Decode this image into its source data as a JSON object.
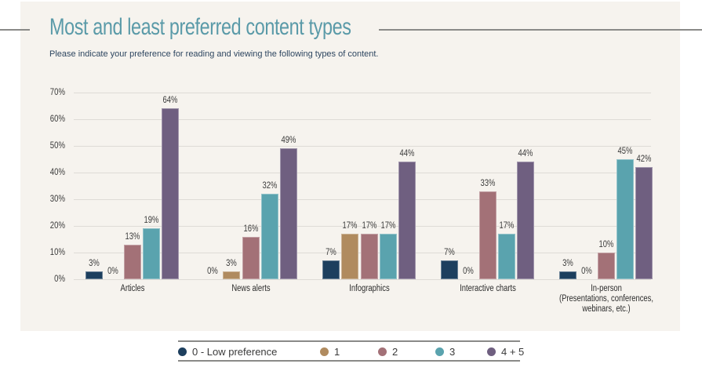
{
  "header": {
    "title": "Most and least preferred content types",
    "subtitle": "Please indicate your preference for reading and viewing the following types of content."
  },
  "colors": {
    "background_panel": "#f6f3ee",
    "title": "#5a9aa8",
    "subtitle": "#2e4660",
    "series": [
      "#1d3f5e",
      "#b08b5f",
      "#a37177",
      "#5aa3ae",
      "#6f5f80"
    ]
  },
  "chart_data": {
    "type": "bar",
    "title": "Most and least preferred content types",
    "subtitle": "Please indicate your preference for reading and viewing the following types of content.",
    "xlabel": "",
    "ylabel": "",
    "ylim": [
      0,
      70
    ],
    "yticks": [
      "0%",
      "10%",
      "20%",
      "30%",
      "40%",
      "50%",
      "60%",
      "70%"
    ],
    "grid": true,
    "legend_position": "bottom",
    "categories": [
      "Articles",
      "News alerts",
      "Infographics",
      "Interactive charts",
      "In-person (Presentations, conferences, webinars, etc.)"
    ],
    "series": [
      {
        "name": "0 - Low preference",
        "color": "#1d3f5e",
        "values": [
          3,
          0,
          7,
          7,
          3
        ]
      },
      {
        "name": "1",
        "color": "#b08b5f",
        "values": [
          0,
          3,
          17,
          0,
          0
        ]
      },
      {
        "name": "2",
        "color": "#a37177",
        "values": [
          13,
          16,
          17,
          33,
          10
        ]
      },
      {
        "name": "3",
        "color": "#5aa3ae",
        "values": [
          19,
          32,
          17,
          17,
          45
        ]
      },
      {
        "name": "4 + 5",
        "color": "#6f5f80",
        "values": [
          64,
          49,
          44,
          44,
          42
        ]
      }
    ]
  },
  "category_labels": [
    [
      "Articles"
    ],
    [
      "News alerts"
    ],
    [
      "Infographics"
    ],
    [
      "Interactive charts"
    ],
    [
      "In-person",
      "(Presentations, conferences,",
      "webinars, etc.)"
    ]
  ],
  "legend": [
    {
      "label": "0 - Low preference",
      "color": "#1d3f5e"
    },
    {
      "label": "1",
      "color": "#b08b5f"
    },
    {
      "label": "2",
      "color": "#a37177"
    },
    {
      "label": "3",
      "color": "#5aa3ae"
    },
    {
      "label": "4 + 5",
      "color": "#6f5f80"
    }
  ]
}
